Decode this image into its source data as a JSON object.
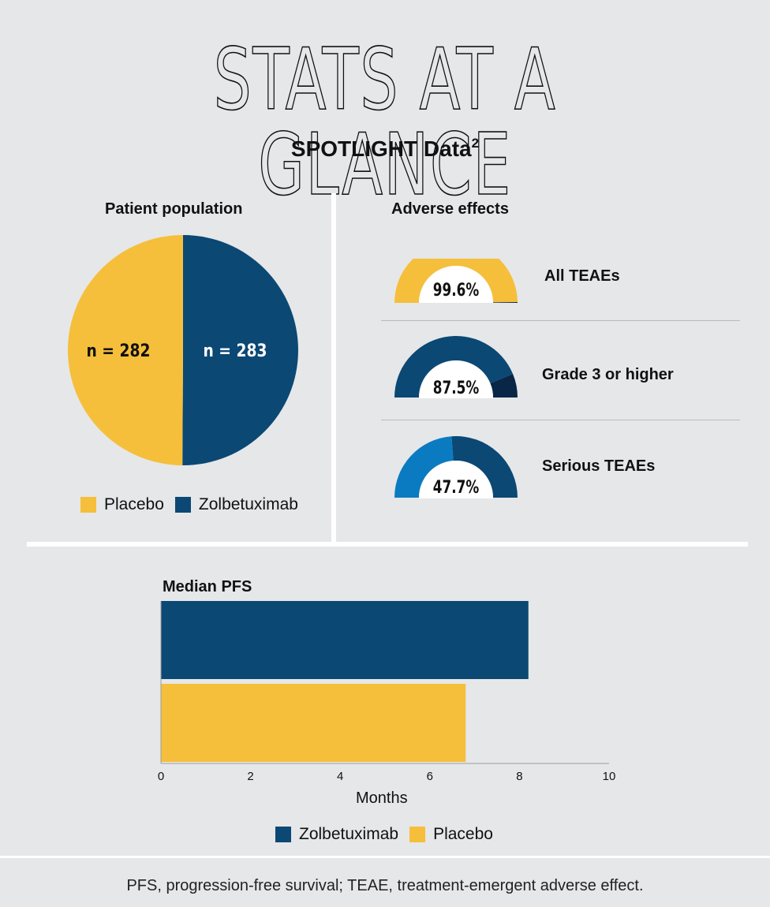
{
  "title": "STATS AT A GLANCE",
  "subtitle": "SPOTLIGHT Data",
  "subtitle_sup": "2",
  "colors": {
    "placebo": "#f5bf3b",
    "zolbetuximab": "#0b4874",
    "dark_navy": "#0a2647",
    "light_blue": "#0b7bc1",
    "background": "#e6e7e8"
  },
  "chart_data": [
    {
      "type": "pie",
      "title": "Patient population",
      "categories": [
        "Placebo",
        "Zolbetuximab"
      ],
      "values": [
        282,
        283
      ],
      "labels": [
        "n = 282",
        "n = 283"
      ],
      "legend": [
        "Placebo",
        "Zolbetuximab"
      ],
      "legend_position": "bottom"
    },
    {
      "type": "gauge",
      "title": "Adverse effects",
      "items": [
        {
          "label": "All TEAEs",
          "value": 99.6,
          "display": "99.6%"
        },
        {
          "label": "Grade 3 or higher",
          "value": 87.5,
          "display": "87.5%"
        },
        {
          "label": "Serious TEAEs",
          "value": 47.7,
          "display": "47.7%"
        }
      ]
    },
    {
      "type": "bar",
      "orientation": "horizontal",
      "title": "Median PFS",
      "categories": [
        "Zolbetuximab",
        "Placebo"
      ],
      "values": [
        8.2,
        6.8
      ],
      "xlabel": "Months",
      "xlim": [
        0,
        10
      ],
      "xticks": [
        "0",
        "2",
        "4",
        "6",
        "8",
        "10"
      ],
      "legend": [
        "Zolbetuximab",
        "Placebo"
      ],
      "legend_position": "bottom"
    }
  ],
  "footnote": "PFS, progression-free survival; TEAE, treatment-emergent adverse effect."
}
